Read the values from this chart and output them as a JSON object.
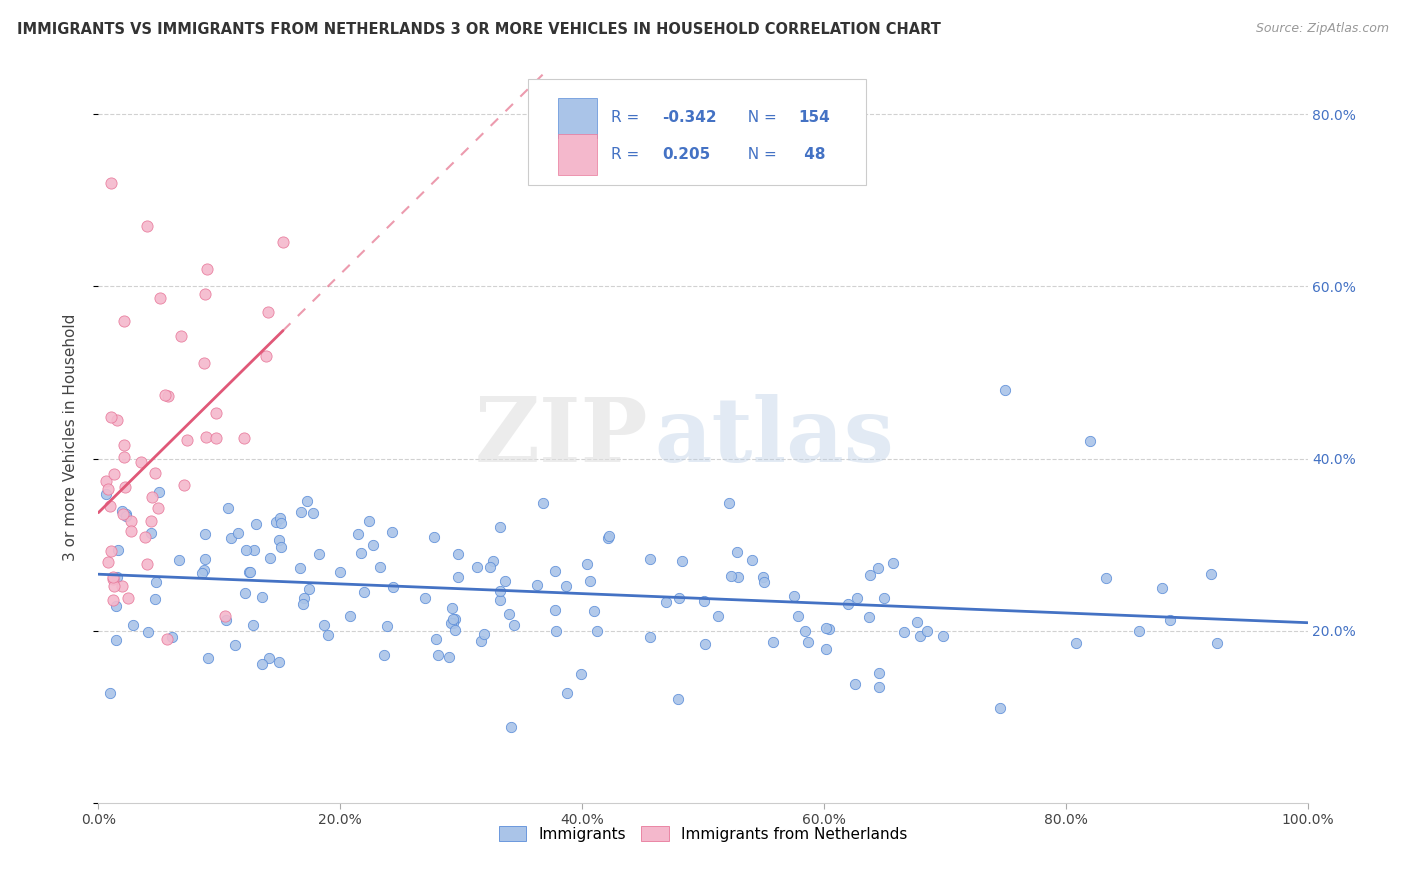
{
  "title": "IMMIGRANTS VS IMMIGRANTS FROM NETHERLANDS 3 OR MORE VEHICLES IN HOUSEHOLD CORRELATION CHART",
  "source": "Source: ZipAtlas.com",
  "ylabel": "3 or more Vehicles in Household",
  "xlim": [
    0.0,
    1.0
  ],
  "ylim": [
    0.0,
    0.85
  ],
  "blue_color": "#aac4e8",
  "blue_edge_color": "#5b8dd9",
  "blue_line_color": "#4472c4",
  "pink_color": "#f4b8cc",
  "pink_edge_color": "#e8789a",
  "pink_line_color": "#e05878",
  "legend_text_color": "#4472c4",
  "blue_r": "-0.342",
  "blue_n": "154",
  "pink_r": "0.205",
  "pink_n": "48",
  "legend_label_blue": "Immigrants",
  "legend_label_pink": "Immigrants from Netherlands",
  "watermark_zip": "ZIP",
  "watermark_atlas": "atlas",
  "grid_color": "#cccccc",
  "right_tick_color": "#4472c4"
}
